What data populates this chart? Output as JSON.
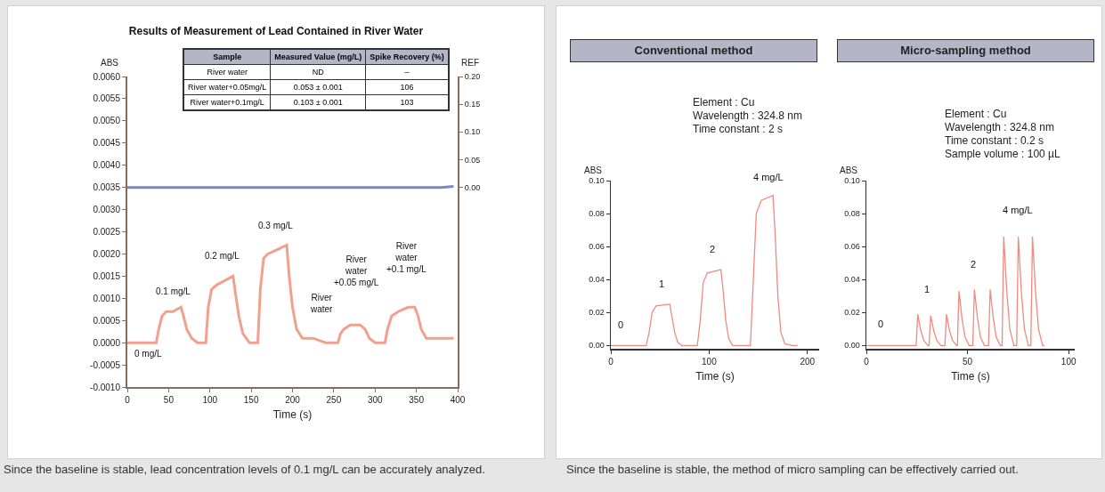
{
  "chart_data": [
    {
      "type": "line",
      "title": "Results of Measurement of Lead Contained in River Water",
      "xlabel": "Time (s)",
      "ylabel": "ABS",
      "y2label": "REF",
      "xlim": [
        0,
        400
      ],
      "xticks": [
        0,
        50,
        100,
        150,
        200,
        250,
        300,
        350,
        400
      ],
      "ylim": [
        -0.001,
        0.006
      ],
      "yticks": [
        {
          "value": -0.001,
          "label": "-0.0010"
        },
        {
          "value": -0.0005,
          "label": "-0.0005"
        },
        {
          "value": 0,
          "label": "0.0000"
        },
        {
          "value": 0.0005,
          "label": "0.0005"
        },
        {
          "value": 0.001,
          "label": "0.0010"
        },
        {
          "value": 0.0015,
          "label": "0.0015"
        },
        {
          "value": 0.002,
          "label": "0.0020"
        },
        {
          "value": 0.0025,
          "label": "0.0025"
        },
        {
          "value": 0.003,
          "label": "0.0030"
        },
        {
          "value": 0.0035,
          "label": "0.0035"
        },
        {
          "value": 0.004,
          "label": "0.0040"
        },
        {
          "value": 0.0045,
          "label": "0.0045"
        },
        {
          "value": 0.005,
          "label": "0.0050"
        },
        {
          "value": 0.0055,
          "label": "0.0055"
        },
        {
          "value": 0.006,
          "label": "0.0060"
        }
      ],
      "y2lim": [
        -0.36,
        0.2
      ],
      "y2ticks": [
        {
          "value": 0,
          "label": "0.00"
        },
        {
          "value": 0.05,
          "label": "0.05"
        },
        {
          "value": 0.1,
          "label": "0.10"
        },
        {
          "value": 0.15,
          "label": "0.15"
        },
        {
          "value": 0.2,
          "label": "0.20"
        }
      ],
      "series": [
        {
          "color": "#f2a08e",
          "x": [
            0,
            20,
            35,
            38,
            42,
            47,
            55,
            65,
            68,
            72,
            78,
            85,
            95,
            98,
            102,
            108,
            118,
            128,
            131,
            135,
            140,
            148,
            158,
            161,
            165,
            170,
            182,
            193,
            196,
            200,
            205,
            212,
            225,
            240,
            255,
            258,
            262,
            270,
            282,
            288,
            293,
            300,
            312,
            315,
            320,
            328,
            340,
            348,
            352,
            356,
            362,
            375,
            385,
            395
          ],
          "values": [
            0,
            0,
            0,
            0.0003,
            0.0006,
            0.0007,
            0.0007,
            0.0008,
            0.0006,
            0.0003,
            0.0001,
            0,
            0,
            0.0008,
            0.0012,
            0.0013,
            0.0014,
            0.0015,
            0.0011,
            0.0006,
            0.0002,
            0,
            0,
            0.0012,
            0.0019,
            0.002,
            0.0021,
            0.0022,
            0.0015,
            0.0008,
            0.0003,
            0.0001,
            0.0001,
            0,
            0,
            0.0002,
            0.0003,
            0.0004,
            0.0004,
            0.0003,
            0.0001,
            0,
            0,
            0.0003,
            0.0006,
            0.0007,
            0.0008,
            0.0008,
            0.0006,
            0.0003,
            0.0001,
            0.0001,
            0.0001,
            0.0001
          ]
        },
        {
          "color": "#7a86c4",
          "axis": "y2",
          "x": [
            0,
            380,
            395
          ],
          "values": [
            0,
            0,
            0.002
          ]
        }
      ],
      "annotations": [
        "Sample\tMeasured Value (mg/L)\tSpike Recovery (%)\nRiver water\tND\t–\nRiver water+0.05mg/L\t0.053 ± 0.001\t106\nRiver water+0.1mg/L\t0.103 ± 0.001\t103",
        "0 mg/L",
        "0.1 mg/L",
        "0.2 mg/L",
        "0.3 mg/L",
        "River\nwater",
        "River\nwater\n+0.05 mg/L",
        "River\nwater\n+0.1 mg/L",
        "Since the baseline is stable, lead concentration levels of 0.1 mg/L can be accurately analyzed."
      ]
    },
    {
      "type": "line",
      "title": "Conventional method",
      "xlabel": "Time (s)",
      "ylabel": "ABS",
      "xlim": [
        0,
        212
      ],
      "xticks": [
        0,
        100,
        200
      ],
      "ylim": [
        -0.002,
        0.1
      ],
      "yticks": [
        {
          "value": 0,
          "label": "0.00"
        },
        {
          "value": 0.02,
          "label": "0.02"
        },
        {
          "value": 0.04,
          "label": "0.04"
        },
        {
          "value": 0.06,
          "label": "0.06"
        },
        {
          "value": 0.08,
          "label": "0.08"
        },
        {
          "value": 0.1,
          "label": "0.10"
        }
      ],
      "series": [
        {
          "color": "#f08a80",
          "x": [
            0,
            36,
            39,
            42,
            46,
            60,
            62,
            65,
            68,
            72,
            80,
            88,
            91,
            94,
            98,
            112,
            114,
            117,
            120,
            124,
            135,
            142,
            145,
            148,
            153,
            165,
            167,
            170,
            173,
            177,
            185,
            190
          ],
          "values": [
            0,
            0,
            0.008,
            0.02,
            0.024,
            0.025,
            0.018,
            0.008,
            0.002,
            0,
            0,
            0,
            0.015,
            0.038,
            0.044,
            0.046,
            0.035,
            0.015,
            0.004,
            0,
            0,
            0,
            0.04,
            0.08,
            0.088,
            0.091,
            0.07,
            0.03,
            0.008,
            0.001,
            0,
            0
          ]
        }
      ],
      "annotations": [
        "Element : Cu\nWavelength : 324.8 nm\nTime constant : 2 s",
        "0",
        "1",
        "2",
        "4 mg/L",
        "Since the baseline is stable, the method of micro sampling can be effectively carried out."
      ]
    },
    {
      "type": "line",
      "title": "Micro-sampling method",
      "xlabel": "Time (s)",
      "ylabel": "ABS",
      "xlim": [
        0,
        103
      ],
      "xticks": [
        0,
        50,
        100
      ],
      "ylim": [
        -0.002,
        0.1
      ],
      "yticks": [
        {
          "value": 0,
          "label": "0.00"
        },
        {
          "value": 0.02,
          "label": "0.02"
        },
        {
          "value": 0.04,
          "label": "0.04"
        },
        {
          "value": 0.06,
          "label": "0.06"
        },
        {
          "value": 0.08,
          "label": "0.08"
        },
        {
          "value": 0.1,
          "label": "0.10"
        }
      ],
      "series": [
        {
          "color": "#f08a80",
          "x": [
            0,
            24.6,
            25.4,
            26.9,
            28.4,
            30.4,
            31,
            31.8,
            33.3,
            34.8,
            36.8,
            38.8,
            39.6,
            41.1,
            42.6,
            44.6,
            45,
            45.8,
            47.3,
            48.8,
            50.8,
            52.6,
            53.4,
            54.9,
            56.4,
            58.4,
            60.4,
            61.2,
            62.7,
            64.2,
            66.2,
            67.1,
            67.9,
            69.4,
            70.9,
            72.9,
            74.3,
            75.1,
            76.6,
            78.1,
            80.1,
            81.3,
            82.1,
            83.6,
            85.1,
            87.1,
            88
          ],
          "values": [
            0,
            0,
            0.019,
            0.009,
            0.003,
            0,
            0,
            0.018,
            0.009,
            0.003,
            0,
            0,
            0.019,
            0.009,
            0.003,
            0,
            0,
            0.033,
            0.016,
            0.005,
            0,
            0,
            0.034,
            0.017,
            0.005,
            0,
            0,
            0.034,
            0.017,
            0.005,
            0,
            0,
            0.066,
            0.033,
            0.01,
            0,
            0,
            0.066,
            0.033,
            0.01,
            0,
            0,
            0.066,
            0.033,
            0.01,
            0,
            0
          ]
        }
      ],
      "annotations": [
        "Element : Cu\nWavelength : 324.8 nm\nTime constant : 0.2 s\nSample volume : 100 µL",
        "0",
        "1",
        "2",
        "4 mg/L"
      ]
    }
  ]
}
